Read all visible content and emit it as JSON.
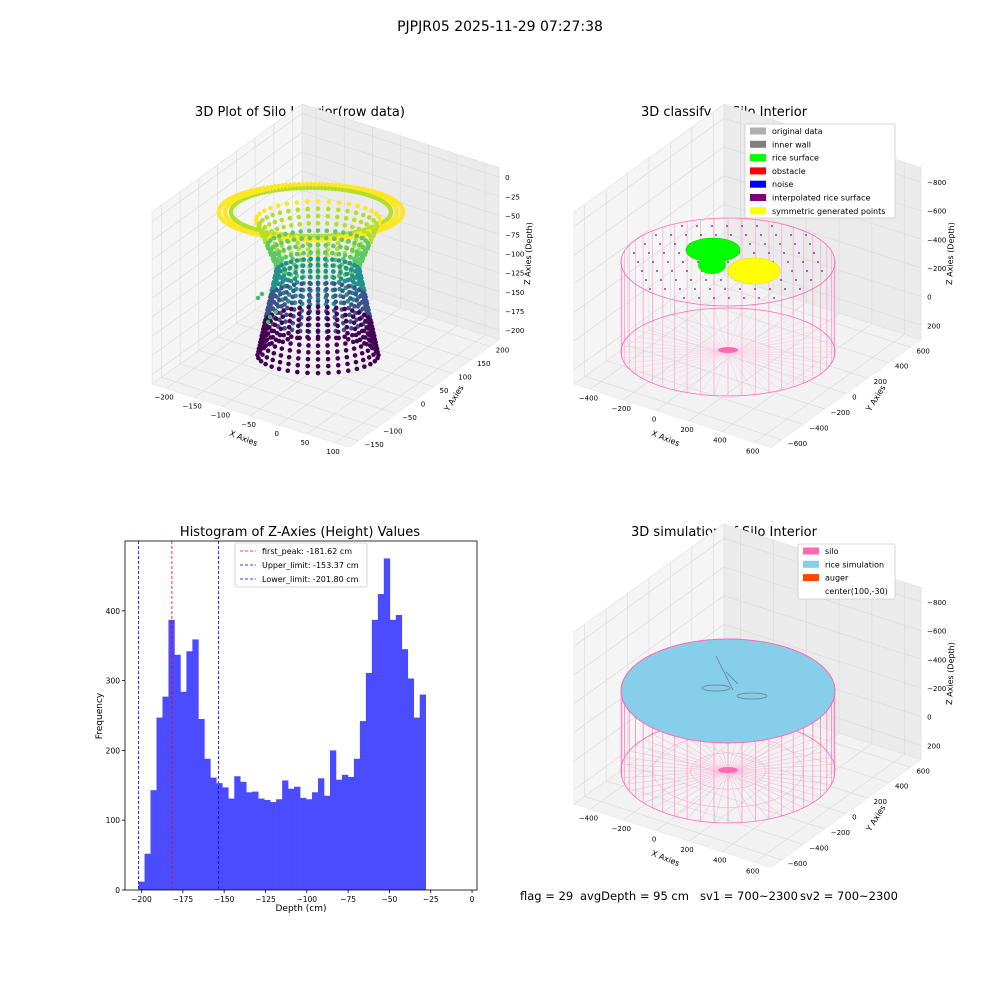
{
  "suptitle": "PJPJR05 2025-11-29 07:27:38",
  "chart_data": [
    {
      "type": "scatter",
      "title": "3D Plot of Silo Interior(row data)",
      "xlabel": "X Axies",
      "ylabel": "Y Axies",
      "zlabel": "Z Axies (Depth)",
      "x_ticks": [
        "−200",
        "−150",
        "−100",
        "−50",
        "0",
        "50",
        "100"
      ],
      "y_ticks": [
        "−150",
        "−100",
        "−50",
        "0",
        "50",
        "100",
        "150",
        "200"
      ],
      "z_ticks": [
        "0",
        "−25",
        "−50",
        "−75",
        "−100",
        "−125",
        "−150",
        "−175",
        "−200"
      ],
      "xlim": [
        -230,
        120
      ],
      "ylim": [
        -170,
        220
      ],
      "zlim": [
        -210,
        5
      ],
      "grid": true,
      "colormap": "viridis"
    },
    {
      "type": "scatter",
      "title": "3D classify of Silo Interior",
      "xlabel": "X Axies",
      "ylabel": "Y Axies",
      "zlabel": "Z Axies (Depth)",
      "x_ticks": [
        "−400",
        "−200",
        "0",
        "200",
        "400",
        "600"
      ],
      "y_ticks": [
        "−600",
        "−400",
        "−200",
        "0",
        "200",
        "400",
        "600"
      ],
      "z_ticks": [
        "200",
        "0",
        "−200",
        "−400",
        "−600",
        "−800"
      ],
      "grid": true,
      "legend_position": "top-right",
      "legend": [
        {
          "label": "original data",
          "color": "#b0b0b0"
        },
        {
          "label": "inner wall",
          "color": "#808080"
        },
        {
          "label": "rice surface",
          "color": "#00ff00"
        },
        {
          "label": "obstacle",
          "color": "#ff0000"
        },
        {
          "label": "noise",
          "color": "#0000ff"
        },
        {
          "label": "interpolated rice surface",
          "color": "#800080"
        },
        {
          "label": "symmetric generated points",
          "color": "#ffff00"
        }
      ]
    },
    {
      "type": "bar",
      "title": "Histogram of Z-Axies (Height) Values",
      "xlabel": "Depth (cm)",
      "ylabel": "Frequency",
      "xlim": [
        -210,
        3
      ],
      "ylim": [
        0,
        500
      ],
      "x_ticks": [
        -200,
        -175,
        -150,
        -125,
        -100,
        -75,
        -50,
        -25,
        0
      ],
      "y_ticks": [
        0,
        100,
        200,
        300,
        400
      ],
      "bar_color": "#4b4bff",
      "bins_start": -201.8,
      "bin_width": 3.62,
      "values": [
        12,
        52,
        143,
        247,
        277,
        387,
        337,
        284,
        342,
        359,
        245,
        188,
        161,
        153,
        147,
        131,
        163,
        155,
        140,
        141,
        131,
        129,
        126,
        130,
        157,
        145,
        148,
        132,
        130,
        140,
        160,
        135,
        200,
        158,
        165,
        162,
        188,
        242,
        311,
        387,
        424,
        475,
        387,
        394,
        345,
        303,
        247,
        280
      ],
      "vlines": [
        {
          "label": "first_peak: -181.62 cm",
          "x": -181.62,
          "color": "#ff0000"
        },
        {
          "label": "Upper_limit: -153.37 cm",
          "x": -153.37,
          "color": "#0000ff"
        },
        {
          "label": "Lower_limit: -201.80 cm",
          "x": -201.8,
          "color": "#0000ff"
        }
      ],
      "legend_position": "top-center",
      "grid": false
    },
    {
      "type": "scatter",
      "title": "3D simulation of Silo Interior",
      "xlabel": "X Axies",
      "ylabel": "Y Axies",
      "zlabel": "Z Axies (Depth)",
      "x_ticks": [
        "−400",
        "−200",
        "0",
        "200",
        "400",
        "600"
      ],
      "y_ticks": [
        "−600",
        "−400",
        "−200",
        "0",
        "200",
        "400",
        "600"
      ],
      "z_ticks": [
        "200",
        "0",
        "−200",
        "−400",
        "−600",
        "−800"
      ],
      "grid": true,
      "legend_position": "top-right",
      "legend": [
        {
          "label": "silo",
          "color": "#ff69b4"
        },
        {
          "label": "rice simulation",
          "color": "#87ceeb"
        },
        {
          "label": "auger",
          "color": "#ff4500"
        },
        {
          "label": "center(100,-30)",
          "color": "none"
        }
      ]
    }
  ],
  "footer": {
    "flag": "flag = 29",
    "avg_depth": "avgDepth = 95 cm",
    "sv1": "sv1 = 700~2300",
    "sv2": "sv2 = 700~2300"
  }
}
